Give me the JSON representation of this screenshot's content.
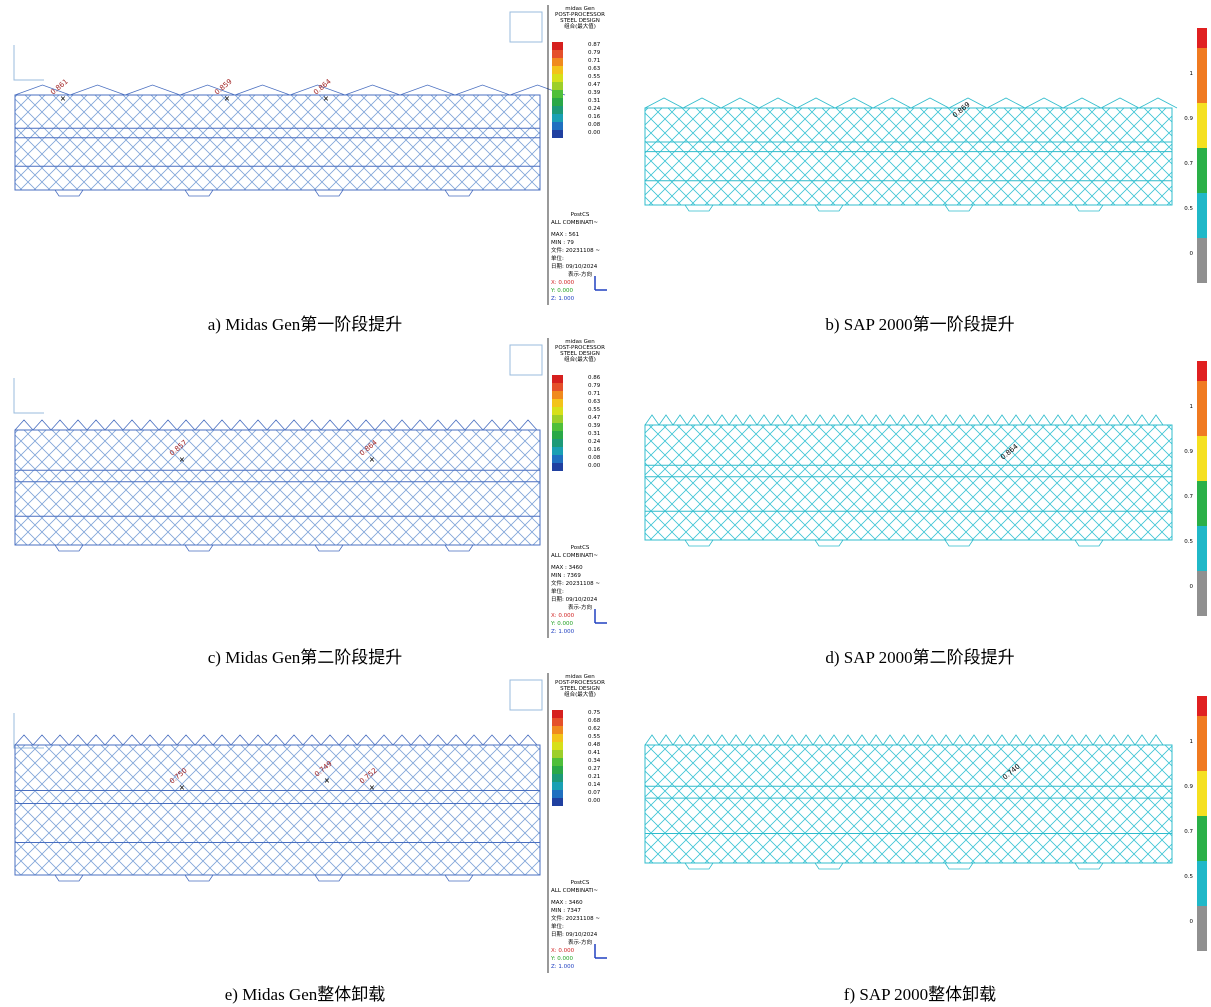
{
  "panels": [
    {
      "caption": "a) Midas Gen第一阶段提升",
      "legend": {
        "header": [
          "midas Gen",
          "POST-PROCESSOR",
          "STEEL DESIGN",
          "组合(最大值)"
        ],
        "values": [
          "0.87",
          "0.79",
          "0.71",
          "0.63",
          "0.55",
          "0.47",
          "0.39",
          "0.31",
          "0.24",
          "0.16",
          "0.08",
          "0.00"
        ],
        "info": [
          "PostCS",
          "ALL COMBINATI~",
          "MAX : 561",
          "MIN : 79",
          "文件: 20231108 ~",
          "单位:",
          "日期: 09/10/2024",
          "表示-方向",
          "X: 0.000",
          "Y: 0.000",
          "Z: 1.000"
        ]
      },
      "annotations": [
        "0.861",
        "0.859",
        "0.864"
      ]
    },
    {
      "caption": "b) SAP 2000第一阶段提升",
      "scale": [
        "1",
        "0.9",
        "0.7",
        "0.5",
        "0"
      ],
      "annotations": [
        "0.869"
      ]
    },
    {
      "caption": "c) Midas Gen第二阶段提升",
      "legend": {
        "header": [
          "midas Gen",
          "POST-PROCESSOR",
          "STEEL DESIGN",
          "组合(最大值)"
        ],
        "values": [
          "0.86",
          "0.79",
          "0.71",
          "0.63",
          "0.55",
          "0.47",
          "0.39",
          "0.31",
          "0.24",
          "0.16",
          "0.08",
          "0.00"
        ],
        "info": [
          "PostCS",
          "ALL COMBINATI~",
          "MAX : 3460",
          "MIN : 7369",
          "文件: 20231108 ~",
          "单位:",
          "日期: 09/10/2024",
          "表示-方向",
          "X: 0.000",
          "Y: 0.000",
          "Z: 1.000"
        ]
      },
      "annotations": [
        "0.857",
        "0.864"
      ]
    },
    {
      "caption": "d) SAP 2000第二阶段提升",
      "scale": [
        "1",
        "0.9",
        "0.7",
        "0.5",
        "0"
      ],
      "annotations": [
        "0.864"
      ]
    },
    {
      "caption": "e) Midas Gen整体卸载",
      "legend": {
        "header": [
          "midas Gen",
          "POST-PROCESSOR",
          "STEEL DESIGN",
          "组合(最大值)"
        ],
        "values": [
          "0.75",
          "0.68",
          "0.62",
          "0.55",
          "0.48",
          "0.41",
          "0.34",
          "0.27",
          "0.21",
          "0.14",
          "0.07",
          "0.00"
        ],
        "info": [
          "PostCS",
          "ALL COMBINATI~",
          "MAX : 3460",
          "MIN : 7347",
          "文件: 20231108 ~",
          "单位:",
          "日期: 09/10/2024",
          "表示-方向",
          "X: 0.000",
          "Y: 0.000",
          "Z: 1.000"
        ]
      },
      "annotations": [
        "0.750",
        "0.749",
        "0.752"
      ]
    },
    {
      "caption": "f) SAP 2000整体卸载",
      "scale": [
        "1",
        "0.9",
        "0.7",
        "0.5",
        "0"
      ],
      "annotations": [
        "0.740"
      ]
    }
  ]
}
